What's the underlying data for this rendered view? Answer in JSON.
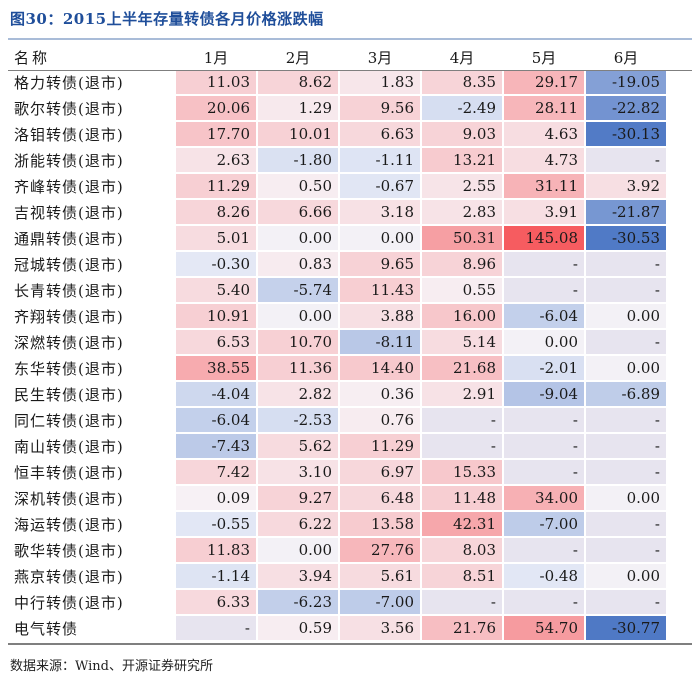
{
  "title": "图30：2015上半年存量转债各月价格涨跌幅",
  "source": "数据来源：Wind、开源证券研究所",
  "columns": [
    "名称",
    "1月",
    "2月",
    "3月",
    "4月",
    "5月",
    "6月"
  ],
  "rows": [
    {
      "name": "格力转债(退市)",
      "values": [
        "11.03",
        "8.62",
        "1.83",
        "8.35",
        "29.17",
        "-19.05"
      ]
    },
    {
      "name": "歌尔转债(退市)",
      "values": [
        "20.06",
        "1.29",
        "9.56",
        "-2.49",
        "28.11",
        "-22.82"
      ]
    },
    {
      "name": "洛钼转债(退市)",
      "values": [
        "17.70",
        "10.01",
        "6.63",
        "9.03",
        "4.63",
        "-30.13"
      ]
    },
    {
      "name": "浙能转债(退市)",
      "values": [
        "2.63",
        "-1.80",
        "-1.11",
        "13.21",
        "4.73",
        "-"
      ]
    },
    {
      "name": "齐峰转债(退市)",
      "values": [
        "11.29",
        "0.50",
        "-0.67",
        "2.55",
        "31.11",
        "3.92"
      ]
    },
    {
      "name": "吉视转债(退市)",
      "values": [
        "8.26",
        "6.66",
        "3.18",
        "2.83",
        "3.91",
        "-21.87"
      ]
    },
    {
      "name": "通鼎转债(退市)",
      "values": [
        "5.01",
        "0.00",
        "0.00",
        "50.31",
        "145.08",
        "-30.53"
      ]
    },
    {
      "name": "冠城转债(退市)",
      "values": [
        "-0.30",
        "0.83",
        "9.65",
        "8.96",
        "-",
        "-"
      ]
    },
    {
      "name": "长青转债(退市)",
      "values": [
        "5.40",
        "-5.74",
        "11.43",
        "0.55",
        "-",
        "-"
      ]
    },
    {
      "name": "齐翔转债(退市)",
      "values": [
        "10.91",
        "0.00",
        "3.88",
        "16.00",
        "-6.04",
        "0.00"
      ]
    },
    {
      "name": "深燃转债(退市)",
      "values": [
        "6.53",
        "10.70",
        "-8.11",
        "5.14",
        "0.00",
        "-"
      ]
    },
    {
      "name": "东华转债(退市)",
      "values": [
        "38.55",
        "11.36",
        "14.40",
        "21.68",
        "-2.01",
        "0.00"
      ]
    },
    {
      "name": "民生转债(退市)",
      "values": [
        "-4.04",
        "2.82",
        "0.36",
        "2.91",
        "-9.04",
        "-6.89"
      ]
    },
    {
      "name": "同仁转债(退市)",
      "values": [
        "-6.04",
        "-2.53",
        "0.76",
        "-",
        "-",
        "-"
      ]
    },
    {
      "name": "南山转债(退市)",
      "values": [
        "-7.43",
        "5.62",
        "11.29",
        "-",
        "-",
        "-"
      ]
    },
    {
      "name": "恒丰转债(退市)",
      "values": [
        "7.42",
        "3.10",
        "6.97",
        "15.33",
        "-",
        "-"
      ]
    },
    {
      "name": "深机转债(退市)",
      "values": [
        "0.09",
        "9.27",
        "6.48",
        "11.48",
        "34.00",
        "0.00"
      ]
    },
    {
      "name": "海运转债(退市)",
      "values": [
        "-0.55",
        "6.22",
        "13.58",
        "42.31",
        "-7.00",
        "-"
      ]
    },
    {
      "name": "歌华转债(退市)",
      "values": [
        "11.83",
        "0.00",
        "27.76",
        "8.03",
        "-",
        "-"
      ]
    },
    {
      "name": "燕京转债(退市)",
      "values": [
        "-1.14",
        "3.94",
        "5.61",
        "8.51",
        "-0.48",
        "0.00"
      ]
    },
    {
      "name": "中行转债(退市)",
      "values": [
        "6.33",
        "-6.23",
        "-7.00",
        "-",
        "-",
        "-"
      ]
    },
    {
      "name": "电气转债",
      "values": [
        "-",
        "0.59",
        "3.56",
        "21.76",
        "54.70",
        "-30.77"
      ]
    }
  ]
}
